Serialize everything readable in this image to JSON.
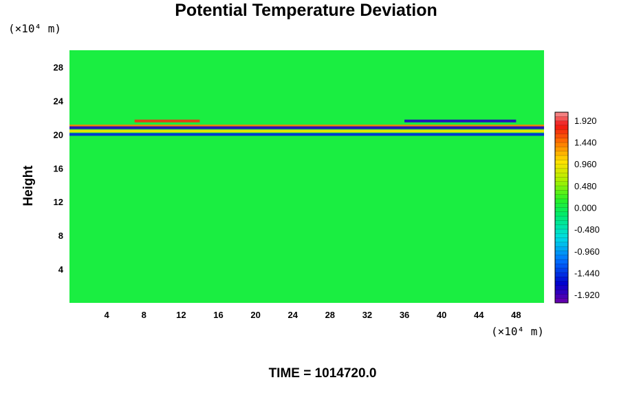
{
  "chart_data": {
    "type": "heatmap",
    "title": "Potential Temperature Deviation",
    "ylabel": "Height",
    "xunit": "(×10⁴ m)",
    "yunit": "(×10⁴ m)",
    "xlim": [
      0,
      51
    ],
    "ylim": [
      0,
      30
    ],
    "xticks": [
      "4",
      "8",
      "12",
      "16",
      "20",
      "24",
      "28",
      "32",
      "36",
      "40",
      "44",
      "48"
    ],
    "xtick_values": [
      4,
      8,
      12,
      16,
      20,
      24,
      28,
      32,
      36,
      40,
      44,
      48
    ],
    "yticks": [
      "4",
      "8",
      "12",
      "16",
      "20",
      "24",
      "28"
    ],
    "ytick_values": [
      4,
      8,
      12,
      16,
      20,
      24,
      28
    ],
    "colorbar": {
      "min": -2.1,
      "max": 2.1,
      "labels": [
        "1.920",
        "1.440",
        "0.960",
        "0.480",
        "0.000",
        "-0.480",
        "-0.960",
        "-1.440",
        "-1.920"
      ],
      "label_values": [
        1.92,
        1.44,
        0.96,
        0.48,
        0.0,
        -0.48,
        -0.96,
        -1.44,
        -1.92
      ]
    },
    "background_value": 0.05,
    "layers": [
      {
        "y": 21.6,
        "x": [
          7,
          14
        ],
        "value": 1.7
      },
      {
        "y": 21.0,
        "x": [
          0,
          51
        ],
        "value": 1.4
      },
      {
        "y": 20.8,
        "x": [
          0,
          51
        ],
        "value": -1.8
      },
      {
        "y": 20.4,
        "x": [
          0,
          51
        ],
        "value": 1.0
      },
      {
        "y": 20.0,
        "x": [
          0,
          51
        ],
        "value": -1.5
      },
      {
        "y": 21.6,
        "x": [
          36,
          48
        ],
        "value": -1.8
      }
    ],
    "footer": "TIME = 1014720.0"
  }
}
